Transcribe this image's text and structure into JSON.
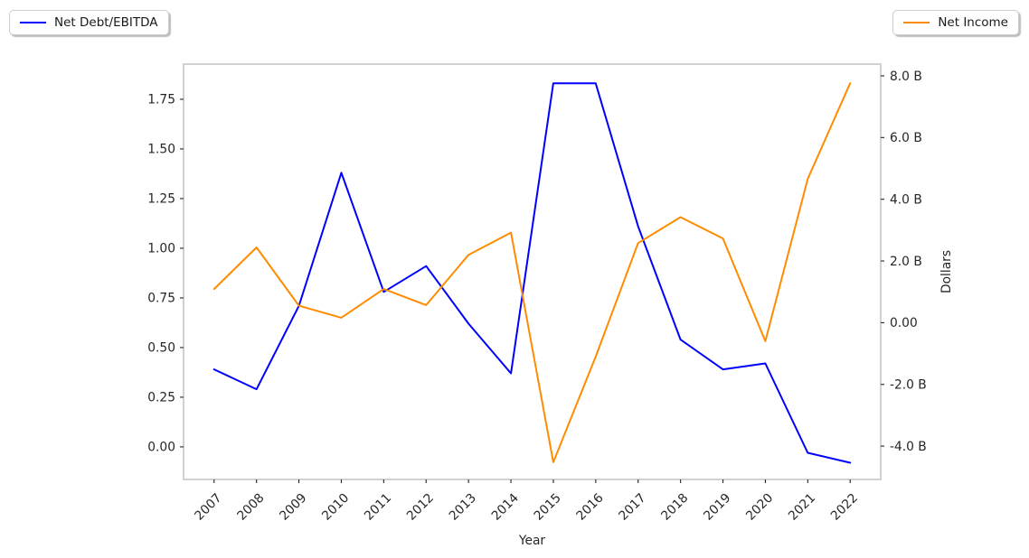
{
  "chart_data": {
    "type": "line",
    "title": "",
    "x": [
      2007,
      2008,
      2009,
      2010,
      2011,
      2012,
      2013,
      2014,
      2015,
      2016,
      2017,
      2018,
      2019,
      2020,
      2021,
      2022
    ],
    "series": [
      {
        "name": "Net Debt/EBITDA",
        "axis": "left",
        "color": "#0000ff",
        "values": [
          0.39,
          0.29,
          0.71,
          1.38,
          0.78,
          0.91,
          0.62,
          0.37,
          1.83,
          1.83,
          1.11,
          0.54,
          0.39,
          0.42,
          -0.03,
          -0.08
        ]
      },
      {
        "name": "Net Income",
        "axis": "right",
        "unit": "billions of dollars",
        "color": "#ff8c00",
        "values": [
          1.09,
          2.44,
          0.55,
          0.16,
          1.09,
          0.57,
          2.2,
          2.92,
          -4.52,
          -1.1,
          2.58,
          3.42,
          2.73,
          -0.6,
          4.66,
          7.76
        ]
      }
    ],
    "x_axis": {
      "label": "Year",
      "tick_labels": [
        "2007",
        "2008",
        "2009",
        "2010",
        "2011",
        "2012",
        "2013",
        "2014",
        "2015",
        "2016",
        "2017",
        "2018",
        "2019",
        "2020",
        "2021",
        "2022"
      ],
      "tick_rotation_deg": 45,
      "xlim": [
        2006.28,
        2022.72
      ]
    },
    "left_axis": {
      "label": "",
      "tick_values": [
        0,
        0.25,
        0.5,
        0.75,
        1.0,
        1.25,
        1.5,
        1.75
      ],
      "tick_labels": [
        "0.00",
        "0.25",
        "0.50",
        "0.75",
        "1.00",
        "1.25",
        "1.50",
        "1.75"
      ],
      "ylim": [
        -0.164,
        1.927
      ]
    },
    "right_axis": {
      "label": "Dollars",
      "tick_values": [
        8,
        6,
        4,
        2,
        0,
        -2,
        -4
      ],
      "tick_labels": [
        "8.0 B",
        "6.0 B",
        "4.0 B",
        "2.0 B",
        "0.00",
        "-2.0 B",
        "-4.0 B"
      ],
      "ylim": [
        -5.08,
        8.38
      ]
    },
    "legend": [
      {
        "label": "Net Debt/EBITDA",
        "color": "#0000ff",
        "position": "top-left"
      },
      {
        "label": "Net Income",
        "color": "#ff8c00",
        "position": "top-right"
      }
    ],
    "grid": false,
    "frame_color": "#cccccc"
  }
}
